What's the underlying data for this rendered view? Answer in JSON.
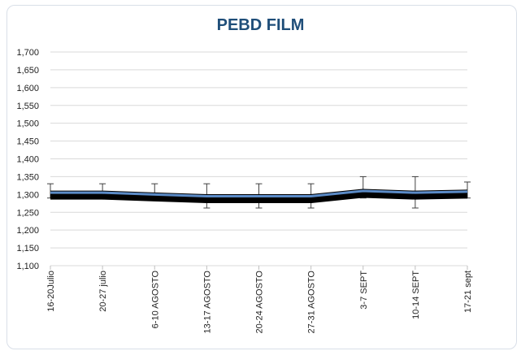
{
  "chart_data": {
    "type": "line",
    "title": "PEBD FILM",
    "xlabel": "",
    "ylabel": "",
    "categories": [
      "16-20Julio",
      "20-27 julio",
      "6-10 AGOSTO",
      "13-17 AGOSTO",
      "20-24 AGOSTO",
      "27-31 AGOSTO",
      "3-7 SEPT",
      "10-14 SEPT",
      "17-21 sept"
    ],
    "y_ticks": [
      "1,100",
      "1,150",
      "1,200",
      "1,250",
      "1,300",
      "1,350",
      "1,400",
      "1,450",
      "1,500",
      "1,550",
      "1,600",
      "1,650",
      "1,700"
    ],
    "ylim": [
      1100,
      1700
    ],
    "grid": true,
    "series": [
      {
        "name": "",
        "color": "#5b8bc7",
        "values": [
          1305,
          1305,
          1300,
          1295,
          1295,
          1295,
          1310,
          1305,
          1308
        ],
        "error_high": [
          1330,
          1330,
          1330,
          1330,
          1330,
          1330,
          1350,
          1350,
          1335
        ],
        "error_low": [
          1290,
          1290,
          1285,
          1262,
          1262,
          1262,
          1290,
          1262,
          1290
        ]
      }
    ]
  }
}
